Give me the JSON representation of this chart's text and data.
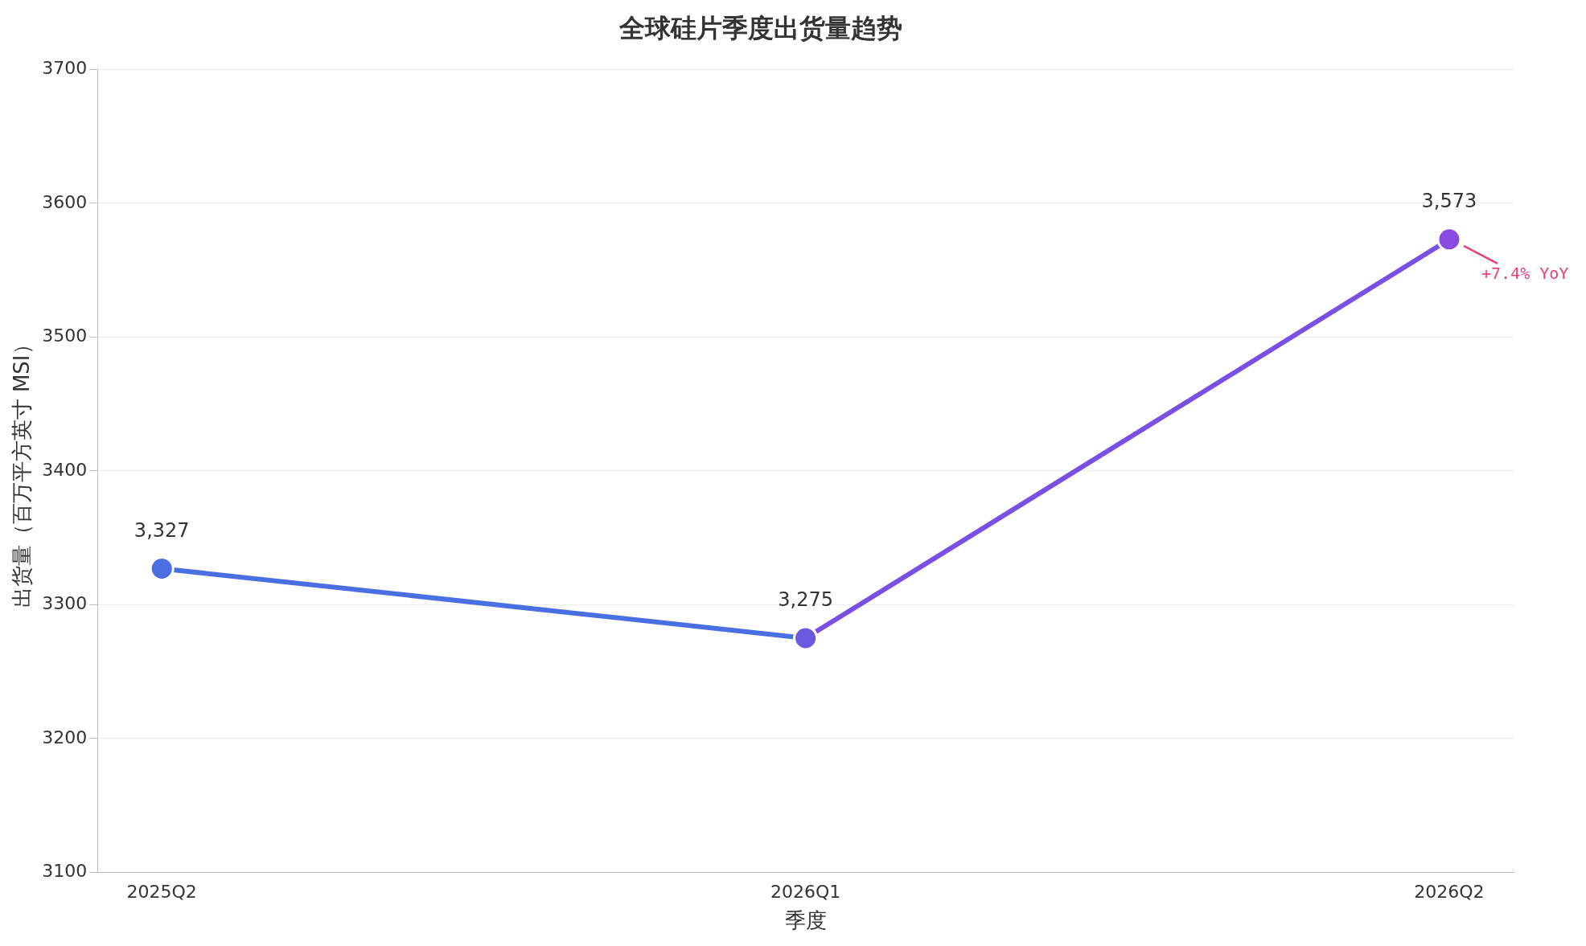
{
  "chart_data": {
    "type": "line",
    "title": "全球硅片季度出货量趋势",
    "xlabel": "季度",
    "ylabel": "出货量（百万平方英寸 MSI）",
    "categories": [
      "2025Q2",
      "2026Q1",
      "2026Q2"
    ],
    "series": [
      {
        "color": "#4a6fe3",
        "colors": [
          "#4a6fe3",
          "#6a5ae0",
          null
        ],
        "values": [
          3327,
          3275,
          null
        ],
        "value_labels": [
          "3,327",
          "3,275",
          null
        ]
      },
      {
        "color": "#7a4fe3",
        "colors": [
          null,
          "#6a5ae0",
          "#8a4be3"
        ],
        "values": [
          null,
          3275,
          3573
        ],
        "value_labels": [
          null,
          null,
          "3,573"
        ]
      }
    ],
    "ylim": [
      3100,
      3700
    ],
    "yticks": [
      3100,
      3200,
      3300,
      3400,
      3500,
      3600,
      3700
    ],
    "grid": "y",
    "legend": false,
    "marker": "circle",
    "line_style": "solid",
    "annotations": [
      {
        "text": "+7.4% YoY",
        "x": "2026Q2",
        "y": 3573
      }
    ]
  }
}
